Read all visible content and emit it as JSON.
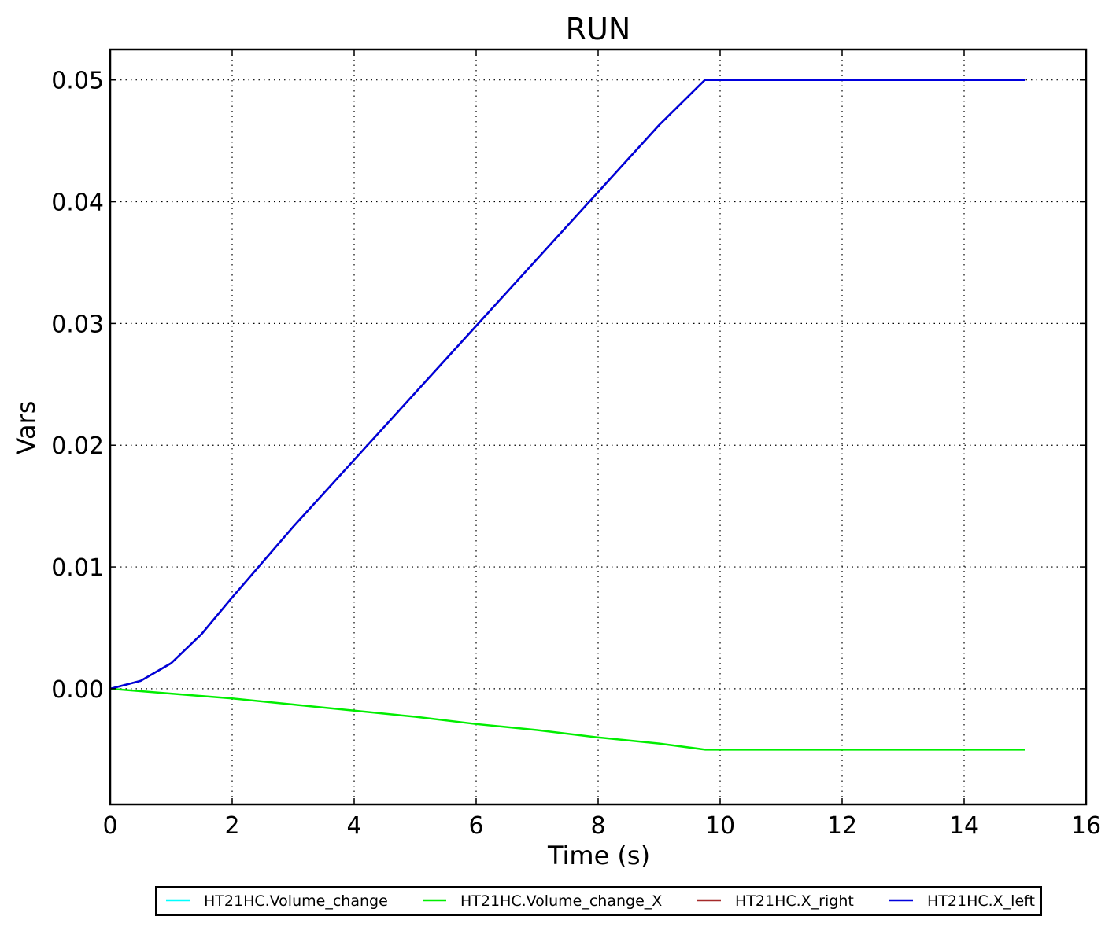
{
  "chart_data": {
    "type": "line",
    "title": "RUN",
    "xlabel": "Time (s)",
    "ylabel": "Vars",
    "xlim": [
      0,
      16
    ],
    "ylim": [
      -0.0095,
      0.0525
    ],
    "x_ticks": [
      0,
      2,
      4,
      6,
      8,
      10,
      12,
      14,
      16
    ],
    "x_tick_labels": [
      "0",
      "2",
      "4",
      "6",
      "8",
      "10",
      "12",
      "14",
      "16"
    ],
    "y_ticks": [
      0.0,
      0.01,
      0.02,
      0.03,
      0.04,
      0.05
    ],
    "y_tick_labels": [
      "0.00",
      "0.01",
      "0.02",
      "0.03",
      "0.04",
      "0.05"
    ],
    "grid": true,
    "grid_style": "dotted",
    "legend_position": "bottom-center",
    "series": [
      {
        "name": "HT21HC.Volume_change",
        "color": "#00ffff",
        "x": [
          0,
          0.5,
          1,
          1.5,
          2,
          3,
          4,
          5,
          6,
          7,
          8,
          9,
          9.75,
          12,
          15
        ],
        "y": [
          0,
          0.00065,
          0.0021,
          0.0045,
          0.0075,
          0.0133,
          0.0188,
          0.0243,
          0.0298,
          0.0353,
          0.0408,
          0.0463,
          0.05,
          0.05,
          0.05
        ]
      },
      {
        "name": "HT21HC.Volume_change_X",
        "color": "#00ee00",
        "x": [
          0,
          1,
          2,
          3,
          4,
          5,
          6,
          7,
          8,
          9,
          9.75,
          12,
          15
        ],
        "y": [
          0,
          -0.0004,
          -0.0008,
          -0.0013,
          -0.0018,
          -0.0023,
          -0.0029,
          -0.0034,
          -0.004,
          -0.0045,
          -0.005,
          -0.005,
          -0.005
        ]
      },
      {
        "name": "HT21HC.X_right",
        "color": "#a52a2a",
        "x": [
          0,
          0.5,
          1,
          1.5,
          2,
          3,
          4,
          5,
          6,
          7,
          8,
          9,
          9.75,
          12,
          15
        ],
        "y": [
          0,
          0.00065,
          0.0021,
          0.0045,
          0.0075,
          0.0133,
          0.0188,
          0.0243,
          0.0298,
          0.0353,
          0.0408,
          0.0463,
          0.05,
          0.05,
          0.05
        ]
      },
      {
        "name": "HT21HC.X_left",
        "color": "#0000dd",
        "x": [
          0,
          0.5,
          1,
          1.5,
          2,
          3,
          4,
          5,
          6,
          7,
          8,
          9,
          9.75,
          12,
          15
        ],
        "y": [
          0,
          0.00065,
          0.0021,
          0.0045,
          0.0075,
          0.0133,
          0.0188,
          0.0243,
          0.0298,
          0.0353,
          0.0408,
          0.0463,
          0.05,
          0.05,
          0.05
        ]
      }
    ]
  }
}
